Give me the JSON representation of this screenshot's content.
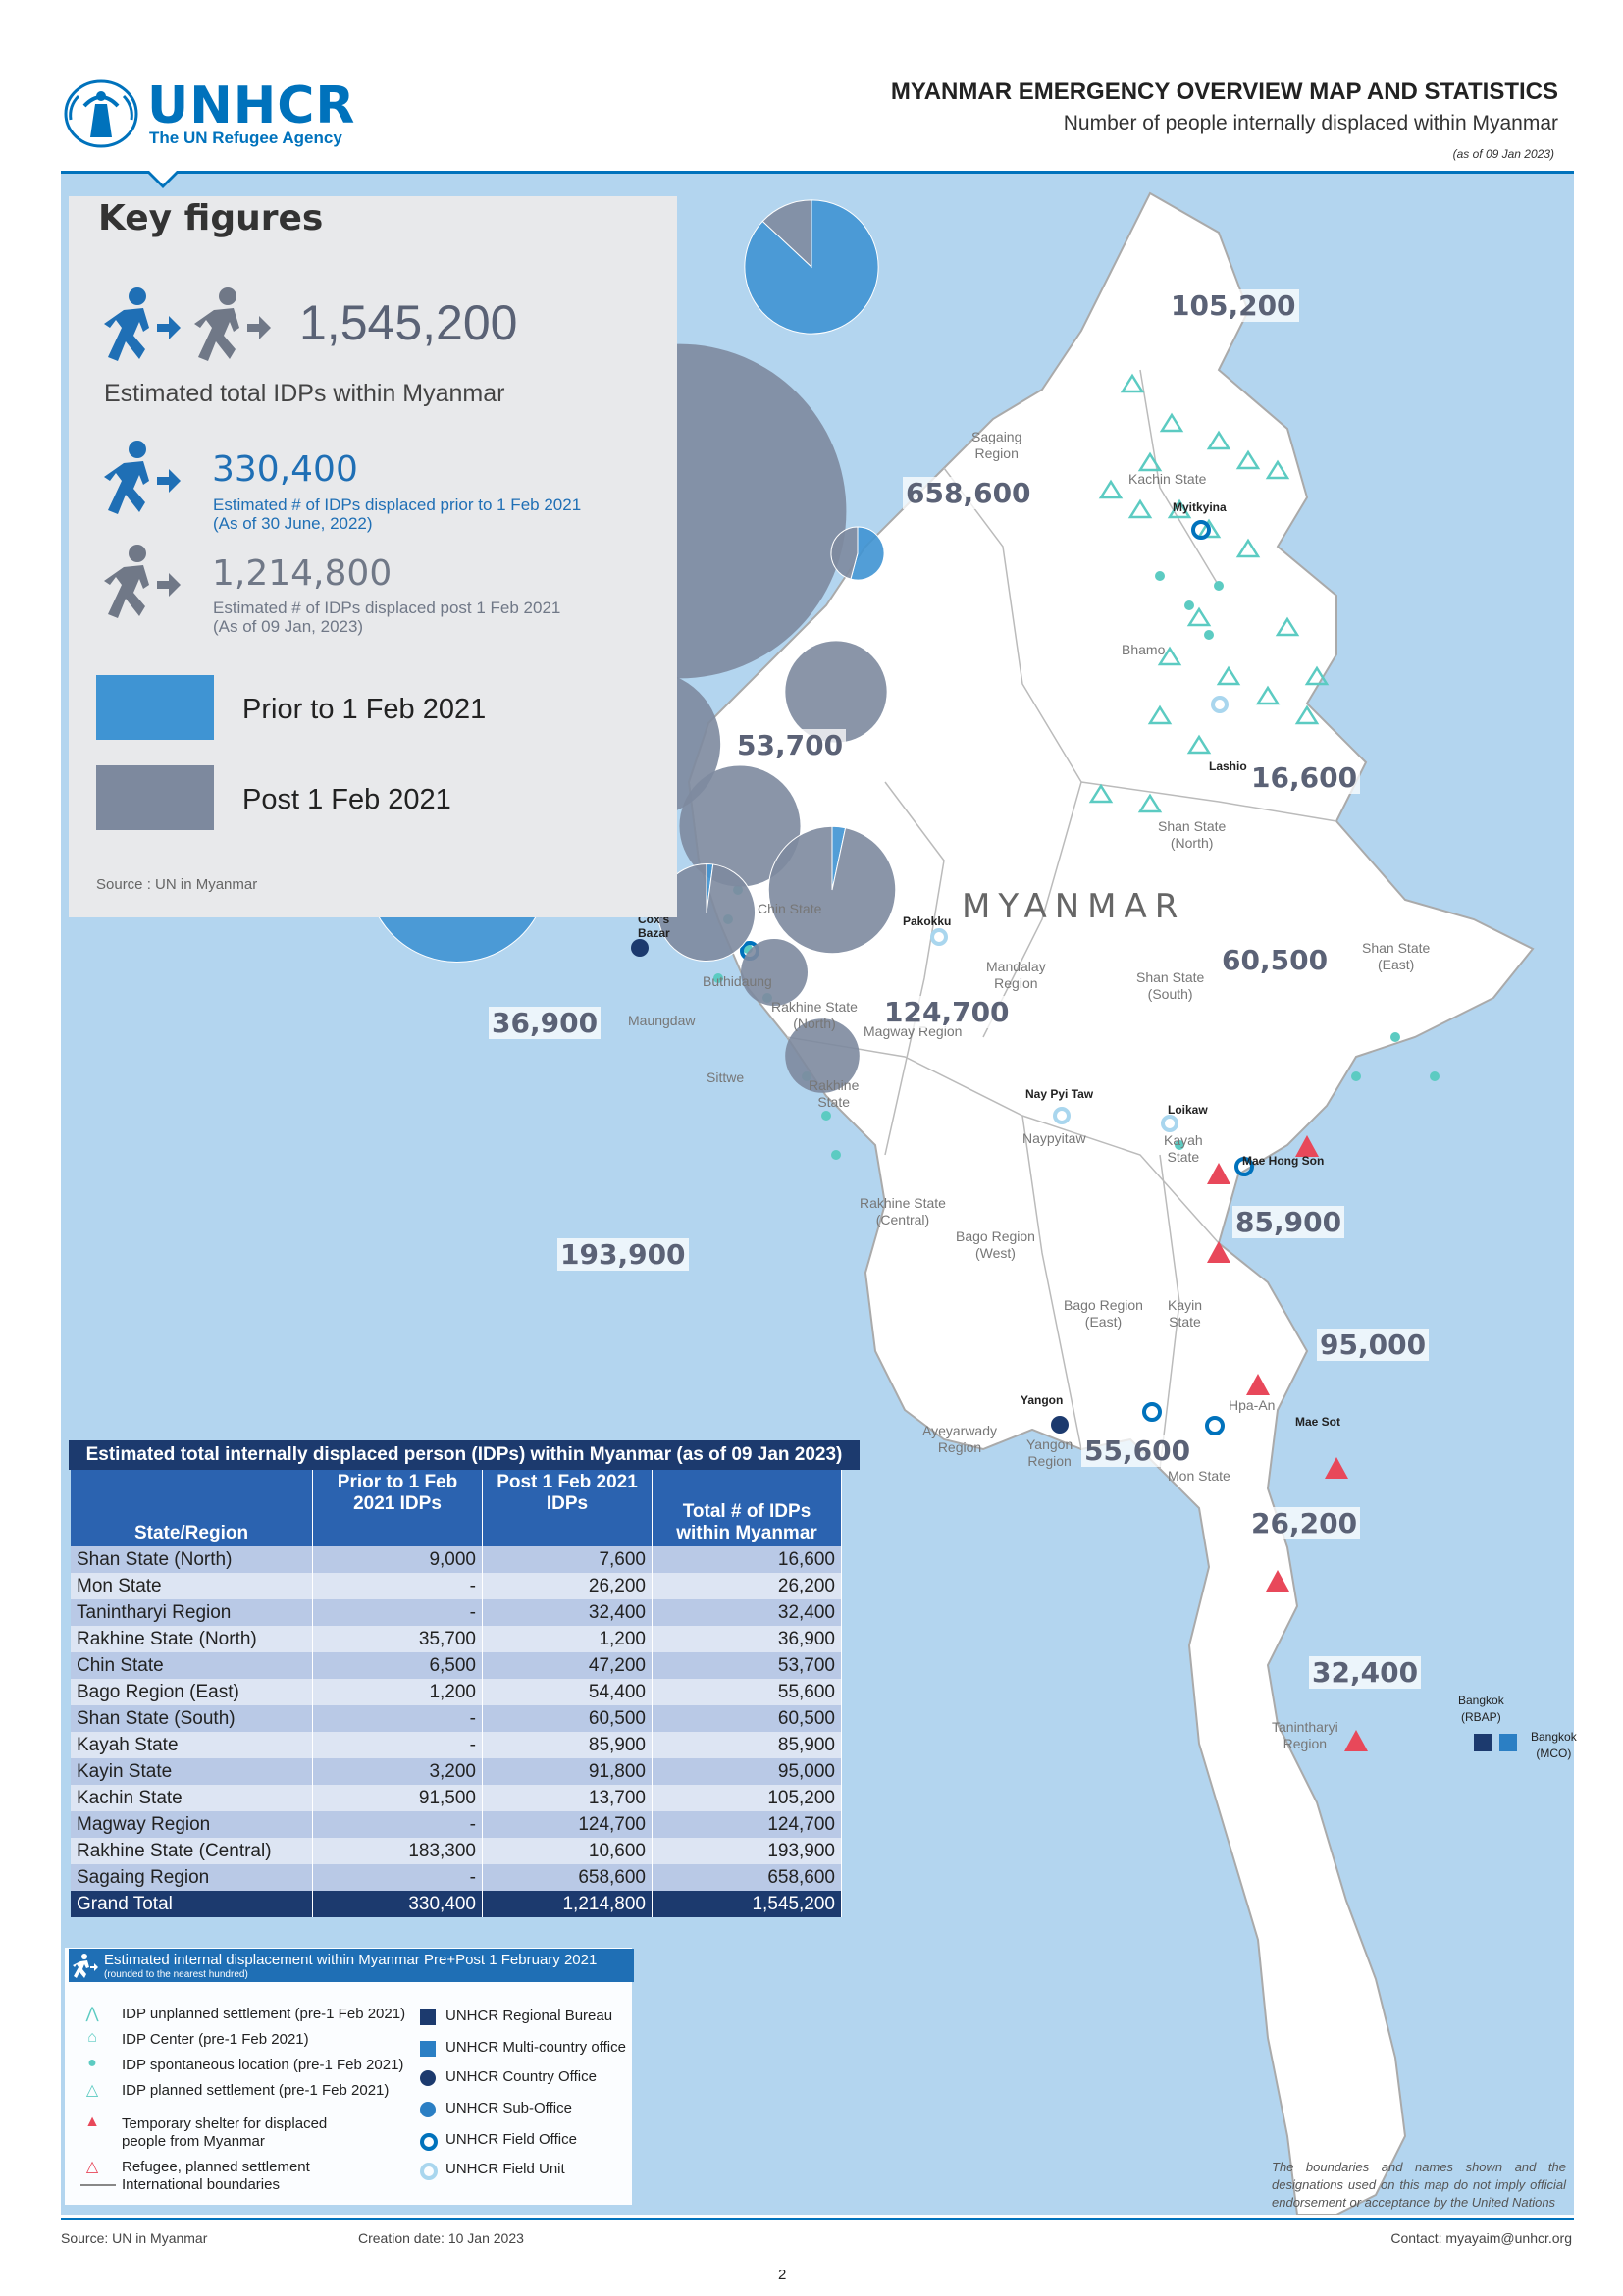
{
  "header": {
    "logo_text": "UNHCR",
    "logo_tagline": "The UN Refugee Agency",
    "title": "MYANMAR EMERGENCY OVERVIEW MAP AND STATISTICS",
    "subtitle": "Number of people internally displaced within Myanmar",
    "date": "(as of 09 Jan 2023)"
  },
  "key_figures": {
    "title": "Key figures",
    "total_value": "1,545,200",
    "total_label": "Estimated total IDPs within Myanmar",
    "pre_value": "330,400",
    "pre_desc_1": "Estimated # of IDPs displaced prior to 1 Feb 2021",
    "pre_desc_2": "(As of 30 June, 2022)",
    "post_value": "1,214,800",
    "post_desc_1": "Estimated # of IDPs displaced post 1 Feb 2021",
    "post_desc_2": "(As of 09 Jan, 2023)",
    "legend_pre": "Prior to 1 Feb 2021",
    "legend_post": "Post 1 Feb 2021",
    "source": "Source : UN in Myanmar"
  },
  "colors": {
    "pre": "#3f94d3",
    "post": "#7d899e",
    "water": "#b3d5ef",
    "land": "#ffffff",
    "brand": "#0072bc"
  },
  "map_labels": {
    "country": "MYANMAR",
    "places": [
      {
        "name": "Sagaing\nRegion"
      },
      {
        "name": "Kachin State"
      },
      {
        "name": "Myitkyina"
      },
      {
        "name": "Bhamo"
      },
      {
        "name": "Lashio"
      },
      {
        "name": "Shan State\n(North)"
      },
      {
        "name": "Chin State"
      },
      {
        "name": "Pakokku"
      },
      {
        "name": "Mandalay\nRegion"
      },
      {
        "name": "Shan State\n(South)"
      },
      {
        "name": "Shan State\n(East)"
      },
      {
        "name": "Cox's\nBazar"
      },
      {
        "name": "Buthidaung"
      },
      {
        "name": "Maungdaw"
      },
      {
        "name": "Rakhine State\n(North)"
      },
      {
        "name": "Magway Region"
      },
      {
        "name": "Sittwe"
      },
      {
        "name": "Rakhine\nState"
      },
      {
        "name": "Nay Pyi Taw"
      },
      {
        "name": "Naypyitaw"
      },
      {
        "name": "Loikaw"
      },
      {
        "name": "Kayah\nState"
      },
      {
        "name": "Mae Hong Son"
      },
      {
        "name": "Rakhine State\n(Central)"
      },
      {
        "name": "Bago Region\n(West)"
      },
      {
        "name": "Bago Region\n(East)"
      },
      {
        "name": "Kayin\nState"
      },
      {
        "name": "Hpa-An"
      },
      {
        "name": "Mae Sot"
      },
      {
        "name": "Yangon"
      },
      {
        "name": "Yangon\nRegion"
      },
      {
        "name": "Ayeyarwady\nRegion"
      },
      {
        "name": "Mon State"
      },
      {
        "name": "Tanintharyi\nRegion"
      },
      {
        "name": "Bangkok\n(RBAP)"
      },
      {
        "name": "Bangkok\n(MCO)"
      }
    ]
  },
  "chart_data": {
    "type": "pie",
    "series_names": [
      "Prior to 1 Feb 2021",
      "Post 1 Feb 2021"
    ],
    "bubbles": [
      {
        "region": "Kachin State",
        "label": "105,200",
        "pre": 91500,
        "post": 13700
      },
      {
        "region": "Sagaing Region",
        "label": "658,600",
        "pre": 0,
        "post": 658600
      },
      {
        "region": "Chin State",
        "label": "53,700",
        "pre": 6500,
        "post": 47200
      },
      {
        "region": "Shan State (North)",
        "label": "16,600",
        "pre": 9000,
        "post": 7600
      },
      {
        "region": "Shan State (South)",
        "label": "60,500",
        "pre": 0,
        "post": 60500
      },
      {
        "region": "Rakhine State (North)",
        "label": "36,900",
        "pre": 35700,
        "post": 1200
      },
      {
        "region": "Magway Region",
        "label": "124,700",
        "pre": 0,
        "post": 124700
      },
      {
        "region": "Rakhine State (Central)",
        "label": "193,900",
        "pre": 183300,
        "post": 10600
      },
      {
        "region": "Kayah State",
        "label": "85,900",
        "pre": 0,
        "post": 85900
      },
      {
        "region": "Kayin State",
        "label": "95,000",
        "pre": 3200,
        "post": 91800
      },
      {
        "region": "Bago Region (East)",
        "label": "55,600",
        "pre": 1200,
        "post": 54400
      },
      {
        "region": "Mon State",
        "label": "26,200",
        "pre": 0,
        "post": 26200
      },
      {
        "region": "Tanintharyi Region",
        "label": "32,400",
        "pre": 0,
        "post": 32400
      }
    ]
  },
  "table": {
    "title": "Estimated total internally displaced person (IDPs) within Myanmar (as of 09 Jan 2023)",
    "headers": [
      "State/Region",
      "Prior to 1 Feb 2021 IDPs",
      "Post 1 Feb 2021 IDPs",
      "Total # of IDPs within Myanmar"
    ],
    "rows": [
      [
        "Shan State (North)",
        "9,000",
        "7,600",
        "16,600"
      ],
      [
        "Mon State",
        "-",
        "26,200",
        "26,200"
      ],
      [
        "Tanintharyi  Region",
        "-",
        "32,400",
        "32,400"
      ],
      [
        "Rakhine State (North)",
        "35,700",
        "1,200",
        "36,900"
      ],
      [
        "Chin State",
        "6,500",
        "47,200",
        "53,700"
      ],
      [
        "Bago Region (East)",
        "1,200",
        "54,400",
        "55,600"
      ],
      [
        "Shan State (South)",
        "-",
        "60,500",
        "60,500"
      ],
      [
        "Kayah State",
        "-",
        "85,900",
        "85,900"
      ],
      [
        "Kayin State",
        "3,200",
        "91,800",
        "95,000"
      ],
      [
        "Kachin State",
        "91,500",
        "13,700",
        "105,200"
      ],
      [
        "Magway Region",
        "-",
        "124,700",
        "124,700"
      ],
      [
        "Rakhine State (Central)",
        "183,300",
        "10,600",
        "193,900"
      ],
      [
        "Sagaing Region",
        "-",
        "658,600",
        "658,600"
      ]
    ],
    "total": [
      "Grand Total",
      "330,400",
      "1,214,800",
      "1,545,200"
    ]
  },
  "legend": {
    "bar_title": "Estimated internal displacement within Myanmar Pre+Post 1 February 2021",
    "bar_sub": "(rounded to the nearest hundred)",
    "left": [
      {
        "icon": "tent-icon",
        "text": "IDP unplanned settlement (pre-1 Feb 2021)"
      },
      {
        "icon": "house-icon",
        "text": "IDP Center (pre-1 Feb 2021)"
      },
      {
        "icon": "pin-icon",
        "text": "IDP spontaneous location (pre-1 Feb 2021)"
      },
      {
        "icon": "triangle-outline-icon",
        "text": "IDP planned settlement (pre-1 Feb 2021)"
      },
      {
        "icon": "red-triangle-icon",
        "text": "Temporary shelter for displaced"
      },
      {
        "icon": "",
        "text": "people from Myanmar"
      },
      {
        "icon": "red-triangle-outline-icon",
        "text": "Refugee, planned settlement"
      },
      {
        "icon": "line-icon",
        "text": "International boundaries"
      }
    ],
    "right": [
      {
        "icon": "regional-bureau-icon",
        "text": "UNHCR Regional Bureau"
      },
      {
        "icon": "multi-country-office-icon",
        "text": "UNHCR Multi-country office"
      },
      {
        "icon": "country-office-icon",
        "text": "UNHCR Country Office"
      },
      {
        "icon": "sub-office-icon",
        "text": "UNHCR Sub-Office"
      },
      {
        "icon": "field-office-icon",
        "text": "UNHCR Field Office"
      },
      {
        "icon": "field-unit-icon",
        "text": "UNHCR Field Unit"
      }
    ]
  },
  "disclaimer": "The boundaries and names shown and the designations used on this map do not imply official endorsement or acceptance by the United Nations",
  "footer": {
    "source": "Source: UN in Myanmar",
    "creation": "Creation date: 10 Jan 2023",
    "contact": "Contact: myayaim@unhcr.org",
    "page": "2"
  }
}
